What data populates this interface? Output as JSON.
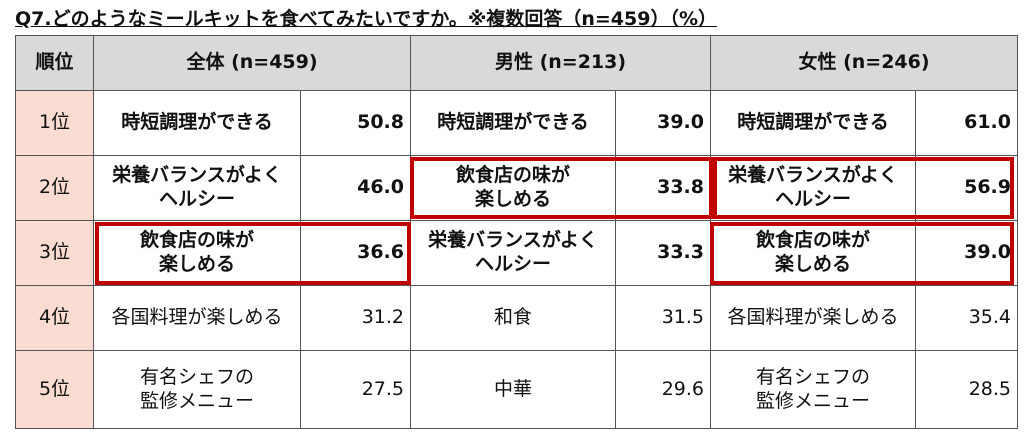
{
  "title": "Q7.どのようなミールキットを食べてみたいですか。※複数回答（n=459）（%）",
  "table": {
    "header": [
      "順位",
      "全体 (n=459)",
      "男性 (n=213)",
      "女性 (n=246)"
    ],
    "rows": [
      {
        "rank": "1位",
        "cells": [
          [
            "時短調理ができる",
            "50.8"
          ],
          [
            "時短調理ができる",
            "39.0"
          ],
          [
            "時短調理ができる",
            "61.0"
          ]
        ]
      },
      {
        "rank": "2位",
        "cells": [
          [
            "栄養バランスがよく\nヘルシー",
            "46.0"
          ],
          [
            "飲食店の味が\n楽しめる",
            "33.8"
          ],
          [
            "栄養バランスがよく\nヘルシー",
            "56.9"
          ]
        ]
      },
      {
        "rank": "3位",
        "cells": [
          [
            "飲食店の味が\n楽しめる",
            "36.6"
          ],
          [
            "栄養バランスがよく\nヘルシー",
            "33.3"
          ],
          [
            "飲食店の味が\n楽しめる",
            "39.0"
          ]
        ]
      },
      {
        "rank": "4位",
        "cells": [
          [
            "各国料理が楽しめる",
            "31.2"
          ],
          [
            "和食",
            "31.5"
          ],
          [
            "各国料理が楽しめる",
            "35.4"
          ]
        ]
      },
      {
        "rank": "5位",
        "cells": [
          [
            "有名シェフの\n監修メニュー",
            "27.5"
          ],
          [
            "中華",
            "29.6"
          ],
          [
            "有名シェフの\n監修メニュー",
            "28.5"
          ]
        ]
      }
    ]
  }
}
